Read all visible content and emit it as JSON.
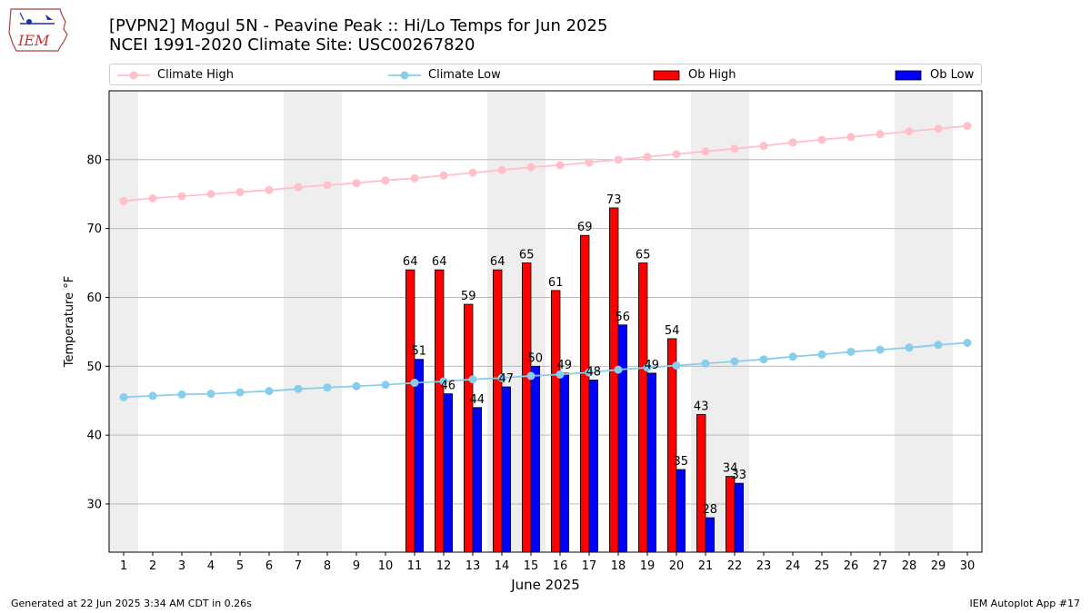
{
  "logo": {
    "text": "IEM"
  },
  "title": {
    "line1": "[PVPN2] Mogul 5N - Peavine Peak :: Hi/Lo Temps for Jun 2025",
    "line2": "NCEI 1991-2020 Climate Site: USC00267820"
  },
  "legend": {
    "climate_high": "Climate High",
    "climate_low": "Climate Low",
    "ob_high": "Ob High",
    "ob_low": "Ob Low"
  },
  "colors": {
    "climate_high": "#ffc0cb",
    "climate_low": "#87ceeb",
    "ob_high": "#ff0000",
    "ob_low": "#0000ff",
    "weekend": "#eeeeee",
    "grid": "#b0b0b0"
  },
  "chart_data": {
    "type": "bar",
    "xlabel": "June 2025",
    "ylabel": "Temperature °F",
    "xlim": [
      0.5,
      30.5
    ],
    "ylim": [
      23,
      90
    ],
    "yticks": [
      30,
      40,
      50,
      60,
      70,
      80
    ],
    "grid": "horizontal",
    "legend_position": "top",
    "weekend_days": [
      1,
      7,
      8,
      14,
      15,
      21,
      22,
      28,
      29
    ],
    "days": [
      1,
      2,
      3,
      4,
      5,
      6,
      7,
      8,
      9,
      10,
      11,
      12,
      13,
      14,
      15,
      16,
      17,
      18,
      19,
      20,
      21,
      22,
      23,
      24,
      25,
      26,
      27,
      28,
      29,
      30
    ],
    "series": [
      {
        "name": "Climate High",
        "kind": "line",
        "values": [
          74.0,
          74.4,
          74.7,
          75.0,
          75.3,
          75.6,
          76.0,
          76.3,
          76.6,
          77.0,
          77.3,
          77.7,
          78.1,
          78.5,
          78.9,
          79.2,
          79.6,
          80.0,
          80.4,
          80.8,
          81.2,
          81.6,
          82.0,
          82.5,
          82.9,
          83.3,
          83.7,
          84.1,
          84.5,
          84.9
        ]
      },
      {
        "name": "Climate Low",
        "kind": "line",
        "values": [
          45.5,
          45.7,
          45.9,
          46.0,
          46.2,
          46.4,
          46.7,
          46.9,
          47.1,
          47.3,
          47.6,
          47.8,
          48.1,
          48.3,
          48.6,
          48.8,
          49.1,
          49.5,
          49.8,
          50.1,
          50.4,
          50.7,
          51.0,
          51.4,
          51.7,
          52.1,
          52.4,
          52.7,
          53.1,
          53.4
        ]
      },
      {
        "name": "Ob High",
        "kind": "bar",
        "values": [
          null,
          null,
          null,
          null,
          null,
          null,
          null,
          null,
          null,
          null,
          64,
          64,
          59,
          64,
          65,
          61,
          69,
          73,
          65,
          54,
          43,
          34,
          null,
          null,
          null,
          null,
          null,
          null,
          null,
          null
        ]
      },
      {
        "name": "Ob Low",
        "kind": "bar",
        "values": [
          null,
          null,
          null,
          null,
          null,
          null,
          null,
          null,
          null,
          null,
          51,
          46,
          44,
          47,
          50,
          49,
          48,
          56,
          49,
          35,
          28,
          33,
          null,
          null,
          null,
          null,
          null,
          null,
          null,
          null
        ]
      }
    ]
  },
  "footer": {
    "left": "Generated at 22 Jun 2025 3:34 AM CDT in 0.26s",
    "right": "IEM Autoplot App #17"
  }
}
